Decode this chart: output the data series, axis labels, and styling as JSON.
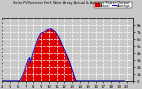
{
  "title": "Solar PV/Inverter Perf. West Array Actual & Average Power Output",
  "legend_actual": "Actual",
  "legend_average": "Average",
  "actual_color": "#dd0000",
  "average_color": "#cc0000",
  "avg_line_color": "#0000cc",
  "bg_color": "#c8c8c8",
  "plot_bg": "#c8c8c8",
  "grid_color": "#ffffff",
  "title_color": "#000000",
  "ylim": [
    0,
    9000
  ],
  "xlim": [
    0,
    287
  ],
  "x_tick_positions": [
    0,
    17,
    34,
    51,
    68,
    85,
    102,
    119,
    136,
    153,
    170,
    187,
    204,
    221,
    238,
    255,
    272,
    287
  ],
  "x_labels": [
    "4",
    "5",
    "6",
    "7",
    "8",
    "9",
    "10",
    "11",
    "12",
    "13",
    "14",
    "15",
    "16",
    "17",
    "18",
    "19",
    "20",
    ""
  ],
  "y_tick_positions": [
    0,
    1000,
    2000,
    3000,
    4000,
    5000,
    6000,
    7000,
    8000
  ],
  "y_labels": [
    "0",
    "1k",
    "2k",
    "3k",
    "4k",
    "5k",
    "6k",
    "7k",
    "8k"
  ],
  "actual_data": [
    0,
    0,
    0,
    0,
    0,
    0,
    0,
    0,
    0,
    0,
    0,
    0,
    0,
    0,
    0,
    0,
    0,
    0,
    0,
    0,
    0,
    0,
    0,
    0,
    0,
    0,
    0,
    0,
    0,
    0,
    0,
    0,
    0,
    0,
    0,
    0,
    0,
    30,
    60,
    120,
    200,
    320,
    460,
    600,
    750,
    900,
    1050,
    1200,
    1400,
    1600,
    1800,
    2000,
    2200,
    2400,
    2600,
    2800,
    3000,
    3100,
    3200,
    3300,
    3400,
    2800,
    2600,
    3000,
    3200,
    3500,
    3800,
    4000,
    4200,
    4400,
    4600,
    4800,
    5000,
    5200,
    5400,
    5600,
    5750,
    5900,
    6050,
    6200,
    6350,
    6500,
    6600,
    6700,
    6800,
    6850,
    6900,
    6920,
    6940,
    6960,
    6980,
    7000,
    7050,
    7100,
    7150,
    7200,
    7250,
    7300,
    7350,
    7380,
    7400,
    7420,
    7440,
    7460,
    7480,
    7500,
    7480,
    7460,
    7440,
    7400,
    7350,
    7300,
    7250,
    7200,
    7150,
    7100,
    7050,
    6950,
    6850,
    6750,
    6650,
    6550,
    6450,
    6350,
    6250,
    6100,
    5950,
    5800,
    5650,
    5500,
    5350,
    5200,
    5050,
    4900,
    4750,
    4600,
    4450,
    4300,
    4150,
    4000,
    3850,
    3700,
    3550,
    3400,
    3250,
    3100,
    2950,
    2800,
    2600,
    2400,
    2200,
    2000,
    1800,
    1600,
    1400,
    1200,
    1000,
    800,
    600,
    400,
    200,
    100,
    50,
    20,
    5,
    0,
    0,
    0,
    0,
    0,
    0,
    0,
    0,
    0,
    0,
    0,
    0,
    0,
    0,
    0,
    0,
    0,
    0,
    0,
    0,
    0,
    0,
    0,
    0,
    0,
    0,
    0,
    0,
    0,
    0,
    0,
    0,
    0,
    0,
    0,
    0,
    0,
    0,
    0,
    0,
    0,
    0,
    0,
    0,
    0,
    0,
    0,
    0,
    0,
    0,
    0,
    0,
    0,
    0,
    0,
    0,
    0,
    0,
    0,
    0,
    0,
    0,
    0,
    0,
    0,
    0,
    0,
    0,
    0,
    0,
    0,
    0,
    0,
    0,
    0,
    0,
    0,
    0,
    0,
    0,
    0,
    0,
    0,
    0,
    0,
    0,
    0,
    0,
    0,
    0,
    0,
    0,
    0,
    0,
    0,
    0,
    0,
    0,
    0,
    0,
    0,
    0,
    0
  ],
  "avg_data": [
    0,
    0,
    0,
    0,
    0,
    0,
    0,
    0,
    0,
    0,
    0,
    0,
    0,
    0,
    0,
    0,
    0,
    0,
    0,
    0,
    0,
    0,
    0,
    0,
    0,
    0,
    0,
    0,
    0,
    0,
    0,
    0,
    0,
    0,
    0,
    0,
    0,
    20,
    50,
    100,
    180,
    290,
    420,
    560,
    700,
    850,
    1000,
    1150,
    1350,
    1550,
    1750,
    1950,
    2150,
    2350,
    2550,
    2750,
    2950,
    3050,
    3150,
    3250,
    3350,
    2750,
    2550,
    2950,
    3150,
    3450,
    3750,
    3950,
    4150,
    4350,
    4550,
    4750,
    4950,
    5150,
    5350,
    5550,
    5700,
    5850,
    6000,
    6150,
    6300,
    6450,
    6550,
    6650,
    6750,
    6800,
    6850,
    6870,
    6890,
    6910,
    6930,
    6950,
    7000,
    7050,
    7100,
    7150,
    7200,
    7250,
    7300,
    7330,
    7350,
    7370,
    7390,
    7410,
    7430,
    7450,
    7430,
    7410,
    7390,
    7350,
    7300,
    7250,
    7200,
    7150,
    7100,
    7050,
    7000,
    6900,
    6800,
    6700,
    6600,
    6500,
    6400,
    6300,
    6200,
    6050,
    5900,
    5750,
    5600,
    5450,
    5300,
    5150,
    5000,
    4850,
    4700,
    4550,
    4400,
    4250,
    4100,
    3950,
    3800,
    3650,
    3500,
    3350,
    3200,
    3050,
    2900,
    2750,
    2550,
    2350,
    2150,
    1950,
    1750,
    1550,
    1350,
    1150,
    950,
    750,
    550,
    350,
    180,
    80,
    40,
    15,
    3,
    0,
    0,
    0,
    0,
    0,
    0,
    0,
    0,
    0,
    0,
    0,
    0,
    0,
    0,
    0,
    0,
    0,
    0,
    0,
    0,
    0,
    0,
    0,
    0,
    0,
    0,
    0,
    0,
    0,
    0,
    0,
    0,
    0,
    0,
    0,
    0,
    0,
    0,
    0,
    0,
    0,
    0,
    0,
    0,
    0,
    0,
    0,
    0,
    0,
    0,
    0,
    0,
    0,
    0,
    0,
    0,
    0,
    0,
    0,
    0,
    0,
    0,
    0,
    0,
    0,
    0,
    0,
    0,
    0,
    0,
    0,
    0,
    0,
    0,
    0,
    0,
    0,
    0,
    0,
    0,
    0,
    0,
    0,
    0,
    0,
    0,
    0,
    0,
    0,
    0,
    0,
    0,
    0,
    0,
    0,
    0,
    0,
    0,
    0,
    0,
    0,
    0,
    0
  ]
}
